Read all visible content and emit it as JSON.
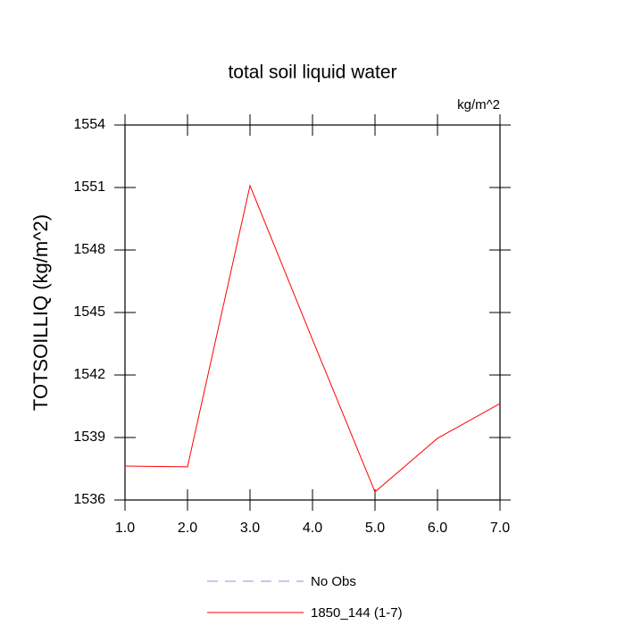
{
  "chart_data": {
    "type": "line",
    "title": "total soil liquid water",
    "units": "kg/m^2",
    "y_label": "TOTSOILLIQ  (kg/m^2)",
    "x": [
      1,
      2,
      3,
      4,
      5,
      6,
      7
    ],
    "series": [
      {
        "name": "No Obs",
        "color": "#8c8cf0",
        "dashed": true,
        "values": [
          null,
          null,
          null,
          null,
          null,
          null,
          null
        ]
      },
      {
        "name": "1850_144 (1-7)",
        "color": "#ff0000",
        "dashed": false,
        "values": [
          1537.63,
          1537.59,
          1551.09,
          1543.7,
          1536.39,
          1538.96,
          1540.63
        ]
      }
    ],
    "xlim": [
      1,
      7
    ],
    "xticks": [
      {
        "value": 1,
        "label": "1.0"
      },
      {
        "value": 2,
        "label": "2.0"
      },
      {
        "value": 3,
        "label": "3.0"
      },
      {
        "value": 4,
        "label": "4.0"
      },
      {
        "value": 5,
        "label": "5.0"
      },
      {
        "value": 6,
        "label": "6.0"
      },
      {
        "value": 7,
        "label": "7.0"
      }
    ],
    "ylim": [
      1536,
      1554
    ],
    "yticks": [
      1536,
      1539,
      1542,
      1545,
      1548,
      1551,
      1554
    ],
    "grid": false
  }
}
